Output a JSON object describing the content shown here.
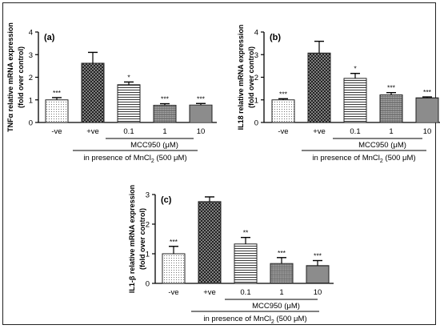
{
  "chart_data": [
    {
      "type": "bar",
      "panel_label": "(a)",
      "ylabel_line1": "TNFα relative mRNA expression",
      "ylabel_line2": "(fold over control)",
      "ylim": [
        0,
        4
      ],
      "yticks": [
        "0",
        "1",
        "2",
        "3",
        "4"
      ],
      "categories": [
        "-ve",
        "+ve",
        "0.1",
        "1",
        "10"
      ],
      "values": [
        1.0,
        2.62,
        1.67,
        0.76,
        0.77
      ],
      "errors": [
        0.1,
        0.48,
        0.12,
        0.07,
        0.07
      ],
      "significance": [
        "***",
        "",
        "*",
        "***",
        "***"
      ],
      "patterns": [
        "dots",
        "crosshatch",
        "hlines",
        "hgrid",
        "hlinesdense"
      ],
      "group_label": "MCC950 (μM)",
      "presence_prefix": "in presence of MnCl",
      "presence_sub": "2",
      "presence_suffix": " (500 μM)"
    },
    {
      "type": "bar",
      "panel_label": "(b)",
      "ylabel_line1": "IL18 relative mRNA expression",
      "ylabel_line2": "(fold over control)",
      "ylim": [
        0,
        4
      ],
      "yticks": [
        "0",
        "1",
        "2",
        "3",
        "4"
      ],
      "categories": [
        "-ve",
        "+ve",
        "0.1",
        "1",
        "10"
      ],
      "values": [
        1.0,
        3.07,
        1.95,
        1.22,
        1.09
      ],
      "errors": [
        0.05,
        0.52,
        0.22,
        0.1,
        0.04
      ],
      "significance": [
        "***",
        "",
        "*",
        "***",
        "***"
      ],
      "patterns": [
        "dots",
        "crosshatch",
        "hlines",
        "hgrid",
        "hlinesdense"
      ],
      "group_label": "MCC950 (μM)",
      "presence_prefix": "in presence of MnCl",
      "presence_sub": "2",
      "presence_suffix": " (500 μM)"
    },
    {
      "type": "bar",
      "panel_label": "(c)",
      "ylabel_line1": "IL1-β relative mRNA expression",
      "ylabel_line2": "(fold over control)",
      "ylim": [
        0,
        3
      ],
      "yticks": [
        "0",
        "1",
        "2",
        "3"
      ],
      "categories": [
        "-ve",
        "+ve",
        "0.1",
        "1",
        "10"
      ],
      "values": [
        1.0,
        2.76,
        1.33,
        0.67,
        0.6
      ],
      "errors": [
        0.25,
        0.16,
        0.22,
        0.2,
        0.17
      ],
      "significance": [
        "***",
        "",
        "**",
        "***",
        "***"
      ],
      "patterns": [
        "dots",
        "crosshatch",
        "hlines",
        "hgrid",
        "hlinesdense"
      ],
      "group_label": "MCC950 (μM)",
      "presence_prefix": "in presence of MnCl",
      "presence_sub": "2",
      "presence_suffix": " (500 μM)"
    }
  ]
}
